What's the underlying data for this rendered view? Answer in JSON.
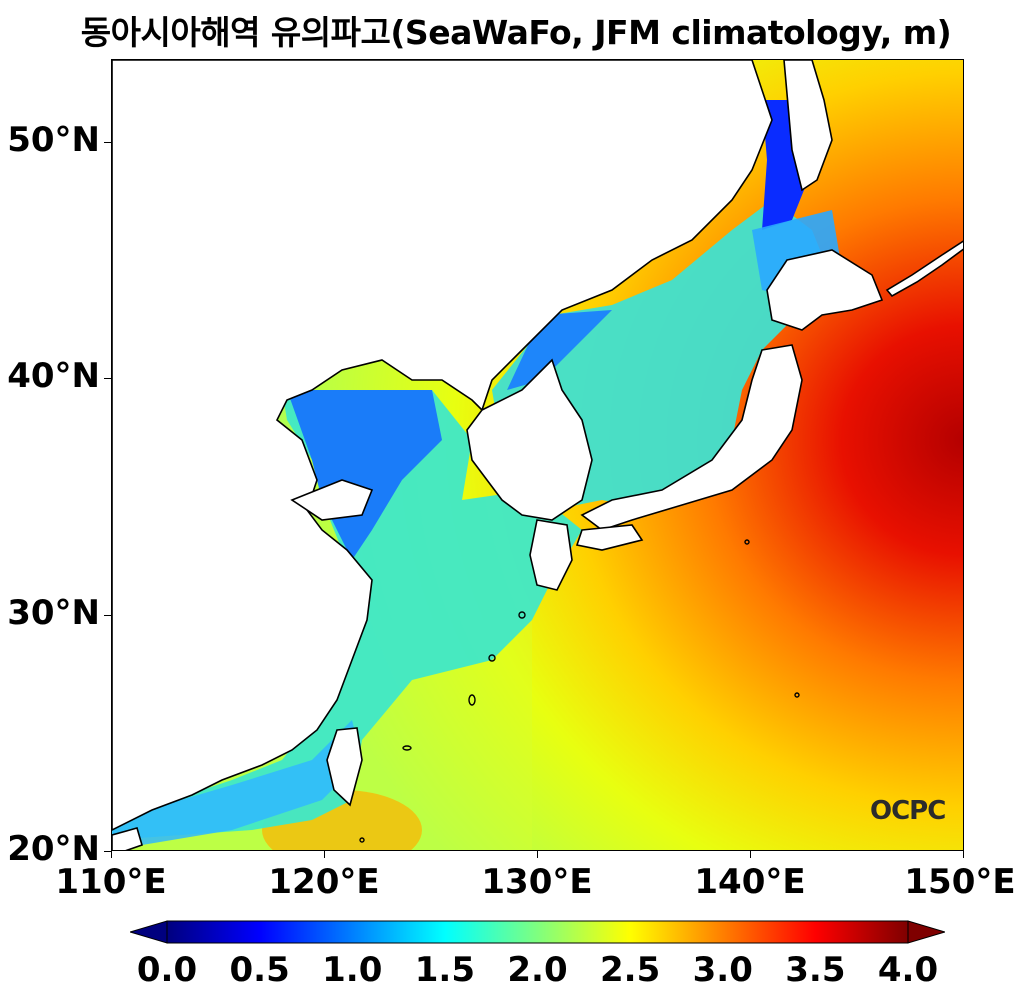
{
  "title": "동아시아해역 유의파고(SeaWaFo, JFM climatology, m)",
  "logo_text": "OCPC",
  "lat_ticks": [
    "50°N",
    "40°N",
    "30°N",
    "20°N"
  ],
  "lon_ticks": [
    "110°E",
    "120°E",
    "130°E",
    "140°E",
    "150°E"
  ],
  "colorbar": {
    "min": 0.0,
    "max": 4.0,
    "labels": [
      "0.0",
      "0.5",
      "1.0",
      "1.5",
      "2.0",
      "2.5",
      "3.0",
      "3.5",
      "4.0"
    ],
    "colormap": "jet",
    "colors": [
      "#00007f",
      "#0000ff",
      "#007fff",
      "#00ffff",
      "#7fff7f",
      "#ffff00",
      "#ff7f00",
      "#ff0000",
      "#7f0000"
    ]
  },
  "map": {
    "extent": {
      "lon_min": 110,
      "lon_max": 150,
      "lat_min": 20,
      "lat_max": 53.3
    }
  }
}
